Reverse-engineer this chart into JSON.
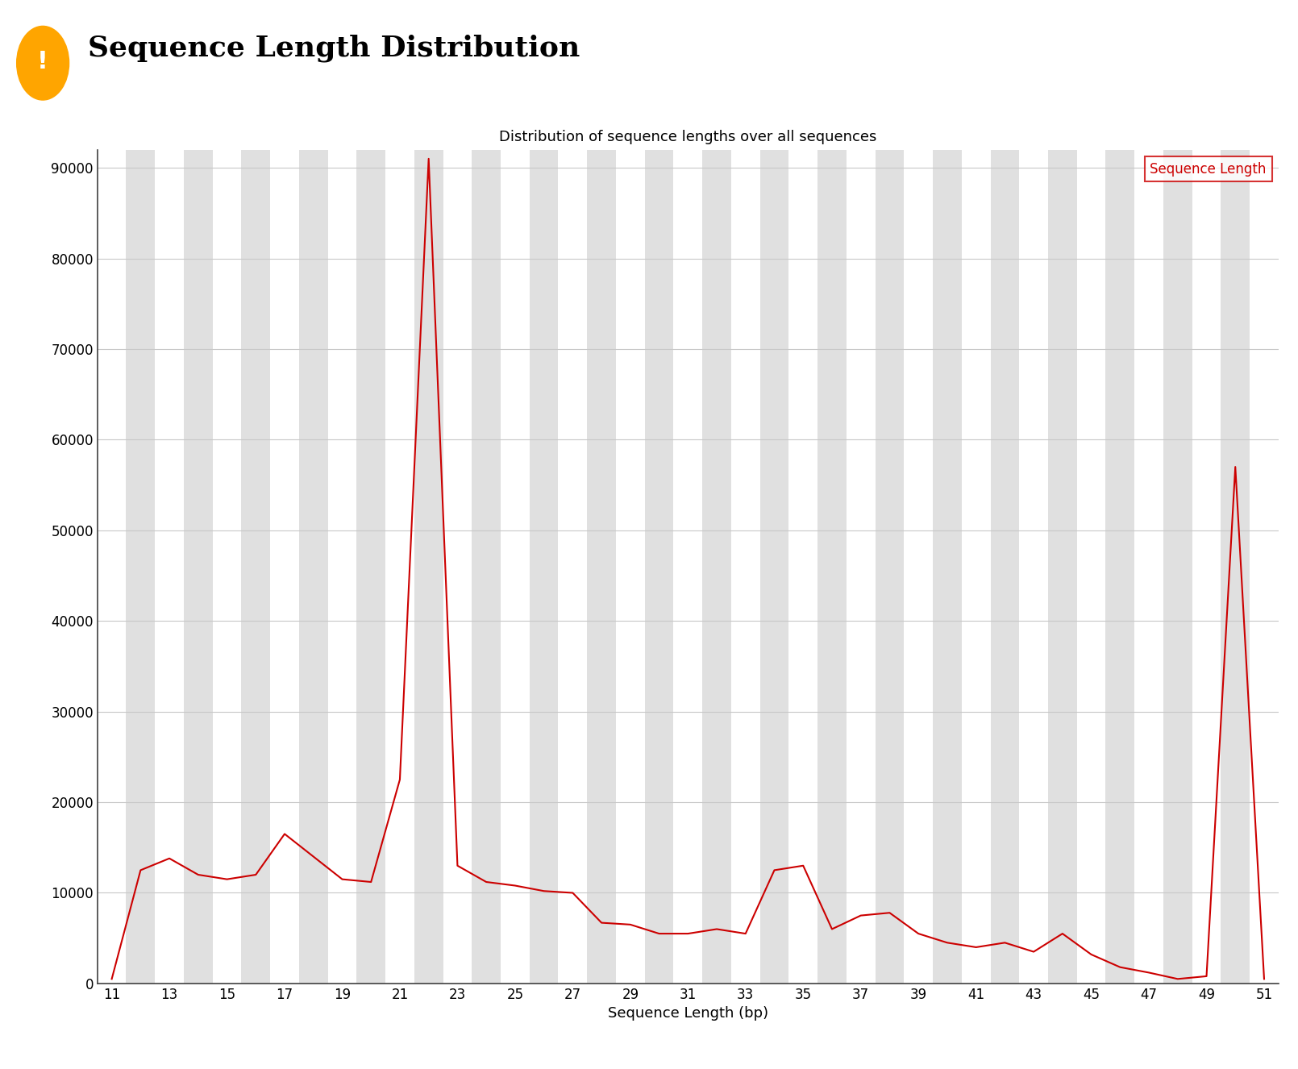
{
  "title": "Sequence Length Distribution",
  "plot_title": "Distribution of sequence lengths over all sequences",
  "xlabel": "Sequence Length (bp)",
  "x_values": [
    11,
    12,
    13,
    14,
    15,
    16,
    17,
    18,
    19,
    20,
    21,
    22,
    23,
    24,
    25,
    26,
    27,
    28,
    29,
    30,
    31,
    32,
    33,
    34,
    35,
    36,
    37,
    38,
    39,
    40,
    41,
    42,
    43,
    44,
    45,
    46,
    47,
    48,
    49,
    50,
    51
  ],
  "y_values": [
    500,
    12500,
    13800,
    12000,
    11500,
    12000,
    16500,
    14000,
    11500,
    11200,
    22500,
    91000,
    13000,
    11200,
    10800,
    10200,
    10000,
    6700,
    6500,
    5500,
    5500,
    6000,
    5500,
    12500,
    13000,
    6000,
    7500,
    7800,
    5500,
    4500,
    4000,
    4500,
    3500,
    5500,
    3200,
    1800,
    1200,
    500,
    800,
    57000,
    500
  ],
  "line_color": "#cc0000",
  "line_width": 1.5,
  "background_color": "#ffffff",
  "plot_bg_color": "#ffffff",
  "stripe_color_gray": "#e0e0e0",
  "stripe_color_white": "#ffffff",
  "grid_color": "#c8c8c8",
  "ylim": [
    0,
    92000
  ],
  "yticks": [
    0,
    10000,
    20000,
    30000,
    40000,
    50000,
    60000,
    70000,
    80000,
    90000
  ],
  "xtick_start": 11,
  "xtick_step": 2,
  "xtick_end": 51,
  "legend_label": "Sequence Length",
  "legend_color": "#cc0000",
  "title_fontsize": 26,
  "plot_title_fontsize": 13,
  "tick_fontsize": 12,
  "xlabel_fontsize": 13,
  "icon_color": "#FFA500"
}
